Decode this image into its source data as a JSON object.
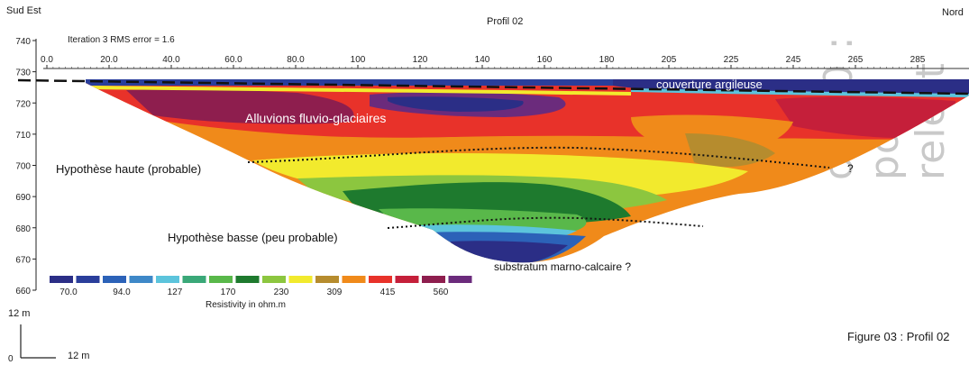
{
  "chart_data": {
    "type": "heatmap",
    "title": "Profil 02",
    "orientation_left": "Sud Est",
    "orientation_right": "Nord",
    "iteration_text": "Iteration 3 RMS error = 1.6",
    "ylabel": "",
    "xlabel": "",
    "y_ticks": [
      740,
      730,
      720,
      710,
      700,
      690,
      680,
      670,
      660
    ],
    "ylim": [
      660,
      740
    ],
    "x_ticks": [
      "0.0",
      "20.0",
      "40.0",
      "60.0",
      "80.0",
      "100",
      "120",
      "140",
      "160",
      "180",
      "205",
      "225",
      "245",
      "265",
      "285"
    ],
    "colorbar": {
      "title": "Resistivity in ohm.m",
      "colors": [
        "#2b2e86",
        "#2a3e9b",
        "#2c62b8",
        "#3e88c8",
        "#5cc4dc",
        "#3aa878",
        "#59b84a",
        "#1e7a2e",
        "#8cc63f",
        "#f2ea2d",
        "#b68c2e",
        "#f08a1a",
        "#e8322a",
        "#c51f3a",
        "#8e1e4e",
        "#6b2b7c"
      ],
      "labels": [
        "70.0",
        "94.0",
        "127",
        "170",
        "230",
        "309",
        "415",
        "560"
      ]
    },
    "annotations": {
      "alluvions": "Alluvions fluvio-glaciaires",
      "couverture": "couverture argileuse",
      "hyp_haute": "Hypothèse haute (probable)",
      "hyp_basse": "Hypothèse basse (peu probable)",
      "substratum": "substratum marno-calcaire ?",
      "question": "?"
    },
    "scale": {
      "vertical": "12 m",
      "horizontal": "12 m",
      "origin": "0"
    },
    "caption": "Figure 03 : Profil 02",
    "watermark": "on 00 : pour relect"
  }
}
